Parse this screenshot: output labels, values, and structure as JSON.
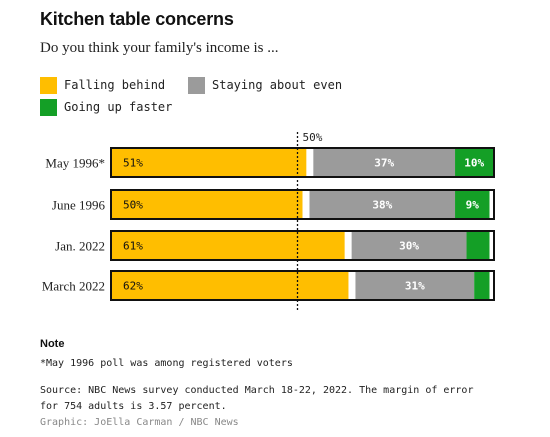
{
  "header": {
    "title": "Kitchen table concerns",
    "subtitle": "Do you think your family's income is ..."
  },
  "legend": [
    {
      "label": "Falling behind",
      "color": "#ffbe00"
    },
    {
      "label": "Staying about even",
      "color": "#9b9b9b"
    },
    {
      "label": "Going up faster",
      "color": "#149f26"
    }
  ],
  "chart_data": {
    "type": "bar",
    "orientation": "horizontal",
    "stacked": true,
    "categories": [
      "May 1996*",
      "June 1996",
      "Jan. 2022",
      "March 2022"
    ],
    "series": [
      {
        "name": "Falling behind",
        "color": "#ffbe00",
        "values": [
          51,
          50,
          61,
          62
        ],
        "labels": [
          "51%",
          "50%",
          "61%",
          "62%"
        ]
      },
      {
        "name": "Staying about even",
        "color": "#9b9b9b",
        "values": [
          37,
          38,
          30,
          31
        ],
        "labels": [
          "37%",
          "38%",
          "30%",
          "31%"
        ]
      },
      {
        "name": "Going up faster",
        "color": "#149f26",
        "values": [
          10,
          9,
          6,
          4
        ],
        "labels": [
          "10%",
          "9%",
          "",
          ""
        ]
      }
    ],
    "xlim": [
      0,
      100
    ],
    "reference_line": {
      "value": 50,
      "label": "50%"
    }
  },
  "notes": {
    "title": "Note",
    "text": "*May 1996 poll was among registered voters",
    "source": "Source: NBC News survey conducted March 18-22, 2022. The margin of error\nfor 754 adults is 3.57 percent.",
    "credit": "Graphic: JoElla Carman / NBC News"
  }
}
